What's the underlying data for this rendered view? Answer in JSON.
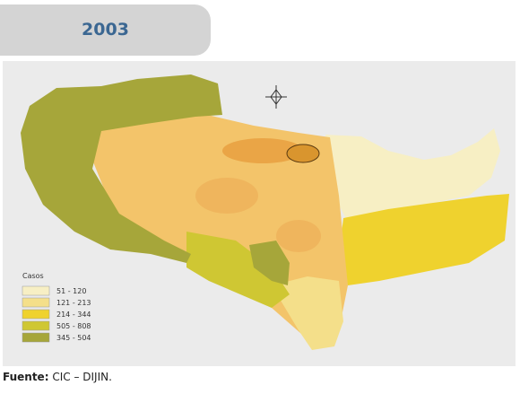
{
  "header": {
    "title": "2003"
  },
  "legend": {
    "title": "Casos",
    "items": [
      {
        "label": "51 - 120",
        "color": "#f7efc4"
      },
      {
        "label": "121 - 213",
        "color": "#f4df8a"
      },
      {
        "label": "214 - 344",
        "color": "#efd22e"
      },
      {
        "label": "505 - 808",
        "color": "#cfc733"
      },
      {
        "label": "345 - 504",
        "color": "#a6a63a"
      }
    ]
  },
  "source": {
    "label": "Fuente:",
    "text": "CIC – DIJIN."
  }
}
